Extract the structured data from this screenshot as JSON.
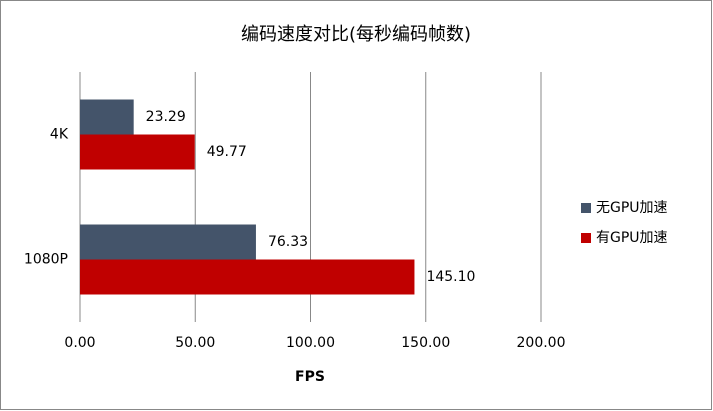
{
  "chart_data": {
    "type": "hbar",
    "title": "编码速度对比(每秒编码帧数)",
    "categories": [
      "4K",
      "1080P"
    ],
    "series": [
      {
        "name": "无GPU加速",
        "color": "#44546a",
        "values": [
          23.29,
          76.33
        ]
      },
      {
        "name": "有GPU加速",
        "color": "#c00000",
        "values": [
          49.77,
          145.1
        ],
        "value_labels": [
          "49.77",
          "145.10"
        ]
      }
    ],
    "xlabel": "FPS",
    "xlim": [
      0,
      200
    ],
    "xticks": [
      {
        "value": 0,
        "label": "0.00"
      },
      {
        "value": 50,
        "label": "50.00"
      },
      {
        "value": 100,
        "label": "100.00"
      },
      {
        "value": 150,
        "label": "150.00"
      },
      {
        "value": 200,
        "label": "200.00"
      }
    ],
    "grid": true,
    "legend": "right"
  }
}
